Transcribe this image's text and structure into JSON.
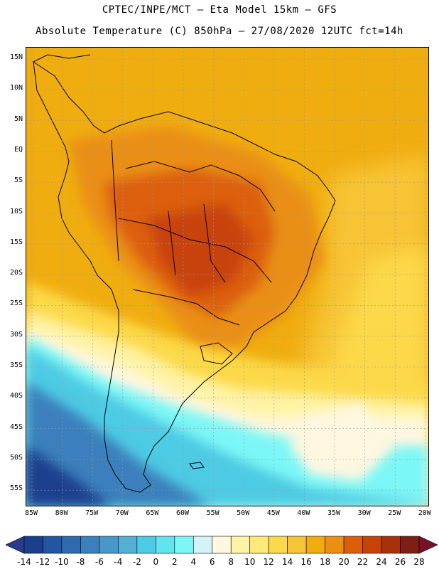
{
  "title_line1": "CPTEC/INPE/MCT –  Eta Model 15km – GFS",
  "title_line2": "Absolute Temperature (C) 850hPa – 27/08/2020 12UTC fct=14h",
  "lat_labels": [
    "15N",
    "10N",
    "5N",
    "EQ",
    "5S",
    "10S",
    "15S",
    "20S",
    "25S",
    "30S",
    "35S",
    "40S",
    "45S",
    "50S",
    "55S"
  ],
  "lon_labels": [
    "85W",
    "80W",
    "75W",
    "70W",
    "65W",
    "60W",
    "55W",
    "50W",
    "45W",
    "40W",
    "35W",
    "30W",
    "25W",
    "20W"
  ],
  "colorbar": {
    "labels": [
      "-14",
      "-12",
      "-10",
      "-8",
      "-6",
      "-4",
      "-2",
      "0",
      "2",
      "4",
      "6",
      "8",
      "10",
      "12",
      "14",
      "16",
      "18",
      "20",
      "22",
      "24",
      "26",
      "28"
    ],
    "colors": [
      "#1c3f8c",
      "#2355a0",
      "#2f6aaf",
      "#3b80bc",
      "#4997c9",
      "#55b0d6",
      "#4ecbe4",
      "#62e4ef",
      "#7cf7f7",
      "#d3f3fb",
      "#fff7e0",
      "#fff3a6",
      "#ffe97a",
      "#fcd94a",
      "#f7c436",
      "#f0ad0f",
      "#ea8f12",
      "#dc5e0b",
      "#c84307",
      "#a8300a",
      "#7e1f13"
    ],
    "under_color": "#2a3a8f",
    "over_color": "#7a0f2a"
  }
}
